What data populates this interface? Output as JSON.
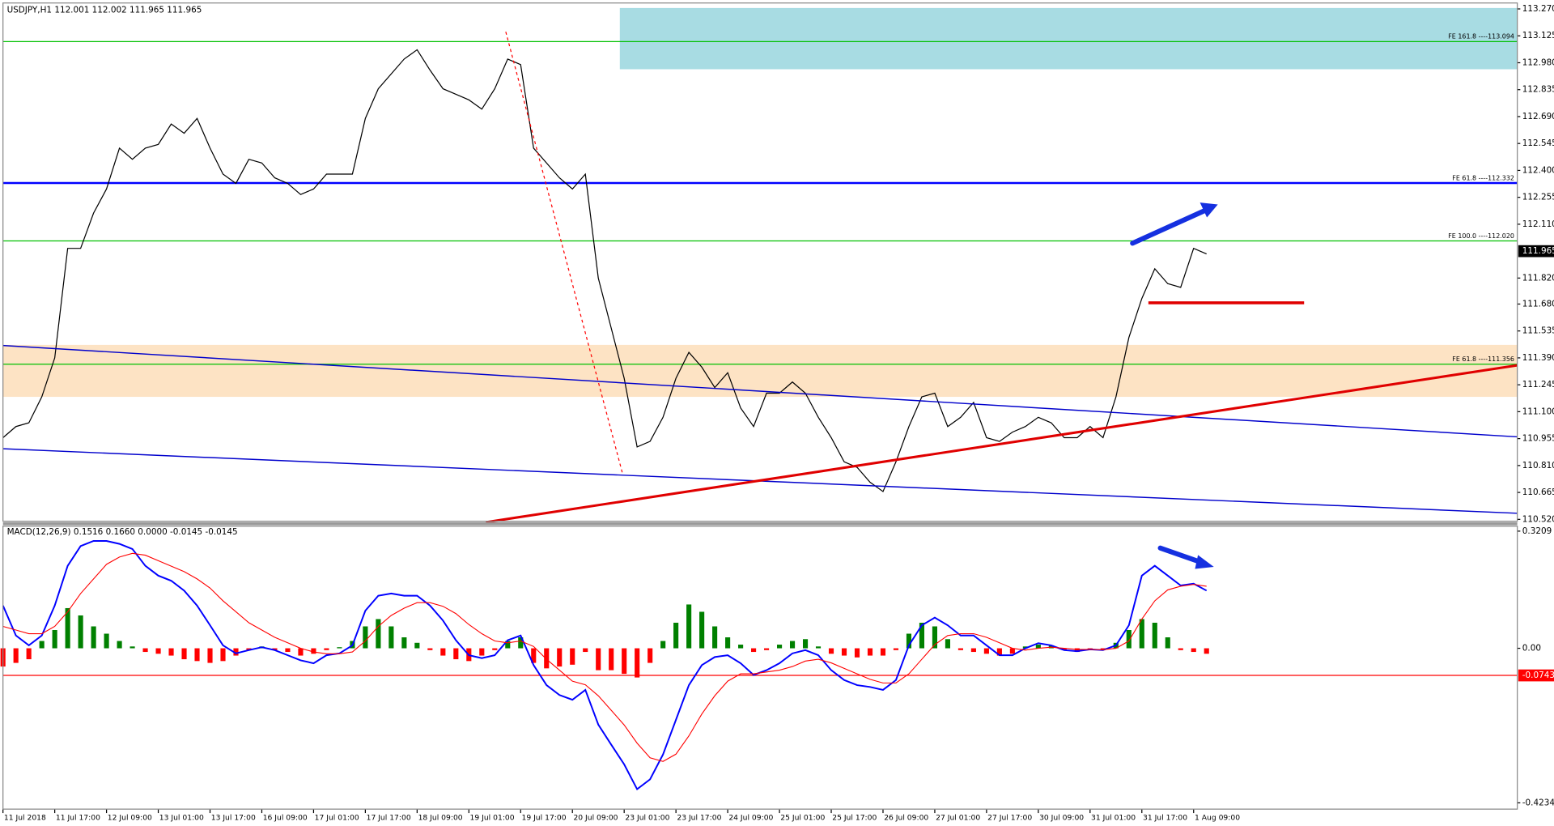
{
  "chart_data": [
    {
      "type": "line",
      "title": "USDJPY,H1  112.001 112.002 111.965 111.965",
      "categories": [
        "11 Jul 2018",
        null,
        null,
        null,
        "11 Jul 17:00",
        null,
        null,
        null,
        "12 Jul 09:00",
        null,
        null,
        null,
        "13 Jul 01:00",
        null,
        null,
        null,
        "13 Jul 17:00",
        null,
        null,
        null,
        "16 Jul 09:00",
        null,
        null,
        null,
        "17 Jul 01:00",
        null,
        null,
        null,
        "17 Jul 17:00",
        null,
        null,
        null,
        "18 Jul 09:00",
        null,
        null,
        null,
        "19 Jul 01:00",
        null,
        null,
        null,
        "19 Jul 17:00",
        null,
        null,
        null,
        "20 Jul 09:00",
        null,
        null,
        null,
        "23 Jul 01:00",
        null,
        null,
        null,
        "23 Jul 17:00",
        null,
        null,
        null,
        "24 Jul 09:00",
        null,
        null,
        null,
        "25 Jul 01:00",
        null,
        null,
        null,
        "25 Jul 17:00",
        null,
        null,
        null,
        "26 Jul 09:00",
        null,
        null,
        null,
        "27 Jul 01:00",
        null,
        null,
        null,
        "27 Jul 17:00",
        null,
        null,
        null,
        "30 Jul 09:00",
        null,
        null,
        null,
        "31 Jul 01:00",
        null,
        null,
        null,
        "31 Jul 17:00",
        null,
        null,
        null,
        "1 Aug 09:00",
        null
      ],
      "values": [
        110.96,
        111.02,
        111.04,
        111.18,
        111.39,
        111.98,
        111.98,
        112.17,
        112.3,
        112.52,
        112.46,
        112.52,
        112.54,
        112.65,
        112.6,
        112.68,
        112.52,
        112.38,
        112.33,
        112.46,
        112.44,
        112.36,
        112.33,
        112.27,
        112.3,
        112.38,
        112.38,
        112.38,
        112.68,
        112.84,
        112.92,
        113.0,
        113.05,
        112.94,
        112.84,
        112.81,
        112.78,
        112.73,
        112.84,
        113.0,
        112.97,
        112.52,
        112.44,
        112.36,
        112.3,
        112.38,
        111.82,
        111.55,
        111.28,
        110.91,
        110.94,
        111.07,
        111.28,
        111.42,
        111.34,
        111.23,
        111.31,
        111.12,
        111.02,
        111.2,
        111.2,
        111.26,
        111.2,
        111.07,
        110.96,
        110.83,
        110.8,
        110.72,
        110.67,
        110.83,
        111.02,
        111.18,
        111.2,
        111.02,
        111.07,
        111.15,
        110.96,
        110.94,
        110.99,
        111.02,
        111.07,
        111.04,
        110.96,
        110.96,
        111.02,
        110.96,
        111.18,
        111.5,
        111.71,
        111.87,
        111.79,
        111.77,
        111.98,
        111.95
      ],
      "color": "#000000",
      "ylim": [
        110.51,
        113.302
      ],
      "yticks": [
        {
          "value": 113.27,
          "label": "113.270"
        },
        113.125,
        {
          "value": 112.98,
          "label": "112.980"
        },
        112.835,
        {
          "value": 112.69,
          "label": "112.690"
        },
        112.545,
        {
          "value": 112.4,
          "label": "112.400"
        },
        112.255,
        {
          "value": 112.11,
          "label": "112.110"
        },
        {
          "value": 111.82,
          "label": "111.820"
        },
        {
          "value": 111.68,
          "label": "111.680"
        },
        111.535,
        {
          "value": 111.39,
          "label": "111.390"
        },
        111.245,
        {
          "value": 111.1,
          "label": "111.100"
        },
        110.955,
        {
          "value": 110.81,
          "label": "110.810"
        },
        110.665,
        {
          "value": 110.52,
          "label": "110.520"
        }
      ],
      "current_price": 111.965,
      "zones": [
        {
          "from": 113.275,
          "to": 112.945,
          "color": "#a8dce3"
        },
        {
          "from": 111.46,
          "to": 111.18,
          "color": "#fde3c4"
        }
      ],
      "levels": [
        {
          "value": 113.094,
          "label": "FE 161.8 ----113.094",
          "color": "#00c000"
        },
        {
          "value": 112.332,
          "label": "FE 61.8 ----112.332",
          "color": "#0000ff"
        },
        {
          "value": 112.02,
          "label": "FE 100.0 ----112.020",
          "color": "#00c000"
        },
        {
          "value": 111.356,
          "label": "FE 61.8 ----111.356",
          "color": "#00c000"
        }
      ]
    },
    {
      "type": "macd",
      "title": "MACD(12,26,9) 0.1516 0.1660 0.0000 -0.0145 -0.0145",
      "series": [
        {
          "color": "#0000ff",
          "values": [
            0.117,
            0.035,
            0.008,
            0.035,
            0.117,
            0.226,
            0.28,
            0.294,
            0.294,
            0.286,
            0.272,
            0.226,
            0.199,
            0.185,
            0.158,
            0.117,
            0.063,
            0.008,
            -0.014,
            -0.005,
            0.003,
            -0.005,
            -0.019,
            -0.033,
            -0.041,
            -0.019,
            -0.014,
            0.008,
            0.103,
            0.144,
            0.15,
            0.144,
            0.144,
            0.117,
            0.076,
            0.022,
            -0.019,
            -0.027,
            -0.019,
            0.022,
            0.035,
            -0.046,
            -0.101,
            -0.128,
            -0.141,
            -0.114,
            -0.209,
            -0.264,
            -0.318,
            -0.386,
            -0.359,
            -0.291,
            -0.196,
            -0.101,
            -0.046,
            -0.024,
            -0.019,
            -0.041,
            -0.073,
            -0.06,
            -0.041,
            -0.014,
            -0.005,
            -0.019,
            -0.06,
            -0.087,
            -0.101,
            -0.106,
            -0.114,
            -0.087,
            0.008,
            0.063,
            0.084,
            0.063,
            0.035,
            0.035,
            0.008,
            -0.019,
            -0.019,
            0.0,
            0.014,
            0.008,
            -0.005,
            -0.008,
            -0.003,
            -0.005,
            0.008,
            0.063,
            0.199,
            0.226,
            0.199,
            0.172,
            0.177,
            0.158
          ]
        },
        {
          "color": "#ff0000",
          "values": [
            0.06,
            0.05,
            0.04,
            0.04,
            0.06,
            0.1,
            0.15,
            0.19,
            0.23,
            0.25,
            0.26,
            0.255,
            0.24,
            0.225,
            0.21,
            0.19,
            0.165,
            0.13,
            0.1,
            0.07,
            0.05,
            0.03,
            0.015,
            0.0,
            -0.01,
            -0.015,
            -0.015,
            -0.01,
            0.02,
            0.06,
            0.09,
            0.11,
            0.125,
            0.125,
            0.115,
            0.095,
            0.065,
            0.04,
            0.02,
            0.015,
            0.02,
            0.005,
            -0.03,
            -0.06,
            -0.09,
            -0.1,
            -0.13,
            -0.17,
            -0.21,
            -0.26,
            -0.3,
            -0.31,
            -0.29,
            -0.24,
            -0.18,
            -0.13,
            -0.09,
            -0.07,
            -0.07,
            -0.065,
            -0.06,
            -0.05,
            -0.035,
            -0.03,
            -0.04,
            -0.055,
            -0.07,
            -0.085,
            -0.095,
            -0.095,
            -0.07,
            -0.03,
            0.01,
            0.035,
            0.04,
            0.04,
            0.03,
            0.015,
            0.0,
            -0.005,
            0.0,
            0.003,
            0.0,
            -0.003,
            -0.003,
            -0.004,
            0.0,
            0.02,
            0.08,
            0.13,
            0.16,
            0.17,
            0.175,
            0.17
          ]
        }
      ],
      "histogram": {
        "up_color": "#008000",
        "down_color": "#ff0000",
        "values": [
          -0.05,
          -0.04,
          -0.03,
          0.02,
          0.05,
          0.11,
          0.09,
          0.06,
          0.04,
          0.02,
          0.005,
          -0.01,
          -0.015,
          -0.02,
          -0.03,
          -0.035,
          -0.04,
          -0.035,
          -0.02,
          -0.005,
          0.005,
          -0.005,
          -0.01,
          -0.02,
          -0.015,
          -0.005,
          0.003,
          0.02,
          0.06,
          0.08,
          0.06,
          0.03,
          0.015,
          -0.005,
          -0.02,
          -0.03,
          -0.035,
          -0.02,
          -0.005,
          0.02,
          0.03,
          -0.04,
          -0.055,
          -0.05,
          -0.045,
          -0.01,
          -0.06,
          -0.06,
          -0.07,
          -0.08,
          -0.04,
          0.02,
          0.07,
          0.12,
          0.1,
          0.06,
          0.03,
          0.01,
          -0.01,
          -0.005,
          0.01,
          0.02,
          0.025,
          0.005,
          -0.015,
          -0.02,
          -0.025,
          -0.02,
          -0.02,
          -0.005,
          0.04,
          0.07,
          0.06,
          0.025,
          -0.005,
          -0.01,
          -0.015,
          -0.02,
          -0.015,
          0.005,
          0.01,
          0.008,
          -0.005,
          -0.01,
          -0.005,
          -0.005,
          0.015,
          0.05,
          0.08,
          0.07,
          0.03,
          -0.005,
          -0.01,
          -0.015
        ]
      },
      "ylim": [
        -0.4406,
        0.3345
      ],
      "yticks": [
        0.3209,
        {
          "value": 0,
          "label": "0.00"
        },
        -0.4234
      ],
      "levels": [
        {
          "value": -0.0743,
          "color": "#ff0000"
        }
      ]
    }
  ]
}
